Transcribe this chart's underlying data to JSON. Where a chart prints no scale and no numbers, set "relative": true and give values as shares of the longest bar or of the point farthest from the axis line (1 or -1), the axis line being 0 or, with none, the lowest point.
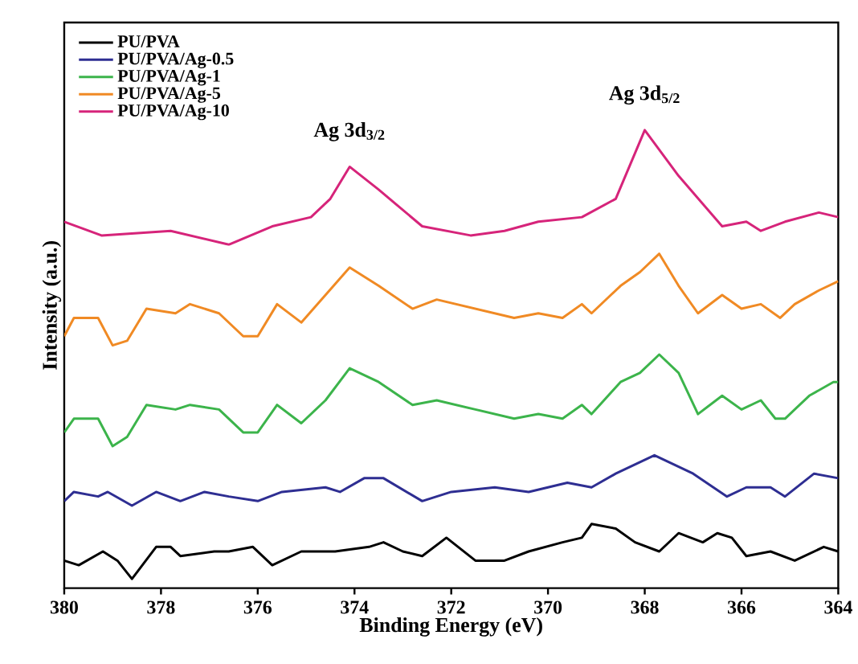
{
  "chart_data": {
    "type": "line",
    "xlabel": "Binding Energy (eV)",
    "ylabel": "Intensity (a.u.)",
    "relative": true,
    "legend": "top left",
    "xlim": [
      380,
      364
    ],
    "xticks": [
      380,
      378,
      376,
      374,
      372,
      370,
      368,
      366,
      364
    ],
    "annotations": [
      {
        "text": "Ag 3d$_{3/2}$",
        "x": 374.1,
        "y": 0.92
      },
      {
        "text": "Ag 3d$_{5/2}$",
        "x": 368.0,
        "y": 1.0
      }
    ],
    "series": [
      {
        "name": "PU/PVA",
        "color": "#000000",
        "x": [
          380,
          379.7,
          379.2,
          378.9,
          378.6,
          378.1,
          377.8,
          377.6,
          376.9,
          376.6,
          376.1,
          375.7,
          375.1,
          374.4,
          373.7,
          373.4,
          373.0,
          372.6,
          372.1,
          371.5,
          370.9,
          370.4,
          369.7,
          369.3,
          369.1,
          368.6,
          368.2,
          367.7,
          367.3,
          366.8,
          366.5,
          366.2,
          365.9,
          365.4,
          364.9,
          364.3,
          364.0
        ],
        "values": [
          0.06,
          0.05,
          0.08,
          0.06,
          0.02,
          0.09,
          0.09,
          0.07,
          0.08,
          0.08,
          0.09,
          0.05,
          0.08,
          0.08,
          0.09,
          0.1,
          0.08,
          0.07,
          0.11,
          0.06,
          0.06,
          0.08,
          0.1,
          0.11,
          0.14,
          0.13,
          0.1,
          0.08,
          0.12,
          0.1,
          0.12,
          0.11,
          0.07,
          0.08,
          0.06,
          0.09,
          0.08
        ]
      },
      {
        "name": "PU/PVA/Ag-0.5",
        "color": "#2e2e92",
        "x": [
          380,
          379.8,
          379.3,
          379.1,
          378.6,
          378.1,
          377.6,
          377.1,
          376.6,
          376.0,
          375.5,
          374.6,
          374.3,
          373.8,
          373.4,
          372.6,
          372.0,
          371.1,
          370.4,
          369.6,
          369.1,
          368.6,
          367.8,
          367.0,
          366.3,
          365.9,
          365.4,
          365.1,
          364.5,
          364.0
        ],
        "values": [
          0.19,
          0.21,
          0.2,
          0.21,
          0.18,
          0.21,
          0.19,
          0.21,
          0.2,
          0.19,
          0.21,
          0.22,
          0.21,
          0.24,
          0.24,
          0.19,
          0.21,
          0.22,
          0.21,
          0.23,
          0.22,
          0.25,
          0.29,
          0.25,
          0.2,
          0.22,
          0.22,
          0.2,
          0.25,
          0.24
        ]
      },
      {
        "name": "PU/PVA/Ag-1",
        "color": "#3cb44b",
        "x": [
          380,
          379.8,
          379.3,
          379.0,
          378.7,
          378.3,
          377.7,
          377.4,
          376.8,
          376.3,
          376.0,
          375.6,
          375.1,
          374.6,
          374.1,
          373.5,
          372.8,
          372.3,
          371.5,
          370.7,
          370.2,
          369.7,
          369.3,
          369.1,
          368.5,
          368.1,
          367.7,
          367.3,
          366.9,
          366.4,
          366.0,
          365.6,
          365.3,
          365.1,
          364.6,
          364.1,
          364.0
        ],
        "values": [
          0.34,
          0.37,
          0.37,
          0.31,
          0.33,
          0.4,
          0.39,
          0.4,
          0.39,
          0.34,
          0.34,
          0.4,
          0.36,
          0.41,
          0.48,
          0.45,
          0.4,
          0.41,
          0.39,
          0.37,
          0.38,
          0.37,
          0.4,
          0.38,
          0.45,
          0.47,
          0.51,
          0.47,
          0.38,
          0.42,
          0.39,
          0.41,
          0.37,
          0.37,
          0.42,
          0.45,
          0.45
        ]
      },
      {
        "name": "PU/PVA/Ag-5",
        "color": "#f08a24",
        "x": [
          380,
          379.8,
          379.3,
          379.0,
          378.7,
          378.3,
          377.7,
          377.4,
          376.8,
          376.3,
          376.0,
          375.6,
          375.1,
          374.6,
          374.1,
          373.5,
          372.8,
          372.3,
          371.5,
          370.7,
          370.2,
          369.7,
          369.3,
          369.1,
          368.5,
          368.1,
          367.7,
          367.3,
          366.9,
          366.4,
          366.0,
          365.6,
          365.2,
          364.9,
          364.4,
          364.0
        ],
        "values": [
          0.55,
          0.59,
          0.59,
          0.53,
          0.54,
          0.61,
          0.6,
          0.62,
          0.6,
          0.55,
          0.55,
          0.62,
          0.58,
          0.64,
          0.7,
          0.66,
          0.61,
          0.63,
          0.61,
          0.59,
          0.6,
          0.59,
          0.62,
          0.6,
          0.66,
          0.69,
          0.73,
          0.66,
          0.6,
          0.64,
          0.61,
          0.62,
          0.59,
          0.62,
          0.65,
          0.67
        ]
      },
      {
        "name": "PU/PVA/Ag-10",
        "color": "#d6247a",
        "x": [
          380,
          379.23,
          377.8,
          376.6,
          375.7,
          374.9,
          374.5,
          374.1,
          373.5,
          372.6,
          371.6,
          370.9,
          370.2,
          369.3,
          368.6,
          368.0,
          367.3,
          366.4,
          365.9,
          365.6,
          365.1,
          364.4,
          364.0
        ],
        "values": [
          0.8,
          0.77,
          0.78,
          0.75,
          0.79,
          0.81,
          0.85,
          0.92,
          0.87,
          0.79,
          0.77,
          0.78,
          0.8,
          0.81,
          0.85,
          1.0,
          0.9,
          0.79,
          0.8,
          0.78,
          0.8,
          0.82,
          0.81
        ]
      }
    ]
  }
}
